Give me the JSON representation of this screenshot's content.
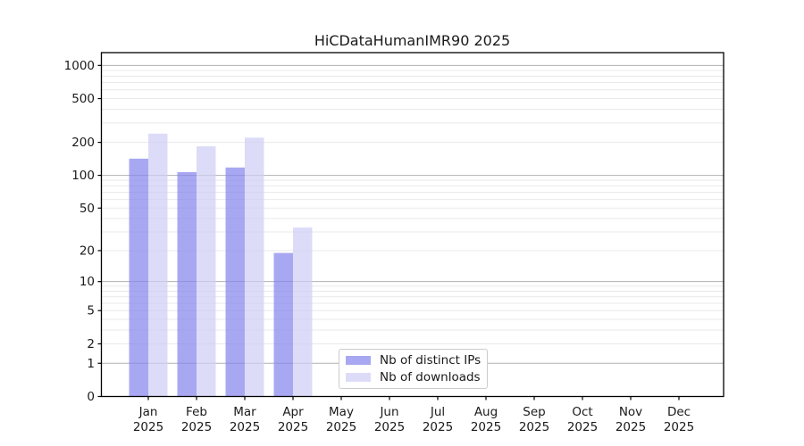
{
  "title": "HiCDataHumanIMR90 2025",
  "chart_data": {
    "type": "bar",
    "title": "HiCDataHumanIMR90 2025",
    "categories": [
      {
        "label": "Jan",
        "year": "2025"
      },
      {
        "label": "Feb",
        "year": "2025"
      },
      {
        "label": "Mar",
        "year": "2025"
      },
      {
        "label": "Apr",
        "year": "2025"
      },
      {
        "label": "May",
        "year": "2025"
      },
      {
        "label": "Jun",
        "year": "2025"
      },
      {
        "label": "Jul",
        "year": "2025"
      },
      {
        "label": "Aug",
        "year": "2025"
      },
      {
        "label": "Sep",
        "year": "2025"
      },
      {
        "label": "Oct",
        "year": "2025"
      },
      {
        "label": "Nov",
        "year": "2025"
      },
      {
        "label": "Dec",
        "year": "2025"
      }
    ],
    "series": [
      {
        "name": "Nb of distinct IPs",
        "color": "#a8a8f2",
        "fill_rgba": "rgba(134,134,237,0.72)",
        "values": [
          142,
          107,
          118,
          19,
          null,
          null,
          null,
          null,
          null,
          null,
          null,
          null
        ]
      },
      {
        "name": "Nb of downloads",
        "color": "#dcdcf8",
        "fill_rgba": "rgba(206,206,245,0.72)",
        "values": [
          240,
          184,
          221,
          33,
          null,
          null,
          null,
          null,
          null,
          null,
          null,
          null
        ]
      }
    ],
    "xlabel": "",
    "ylabel": "",
    "y_scale": "log10(1+x)",
    "y_ticks": [
      0,
      1,
      2,
      5,
      10,
      20,
      50,
      100,
      200,
      500,
      1000
    ],
    "y_major_gridlines": [
      1,
      10,
      100,
      1000
    ],
    "ylim": [
      0,
      1300
    ],
    "grid": true,
    "legend_position": "inside-bottom-center"
  },
  "style": {
    "minor_grid_color": "#e9e9e9",
    "major_grid_color": "#b0b0b0",
    "axis_color": "#000000",
    "text_color": "#1a1a1a"
  }
}
